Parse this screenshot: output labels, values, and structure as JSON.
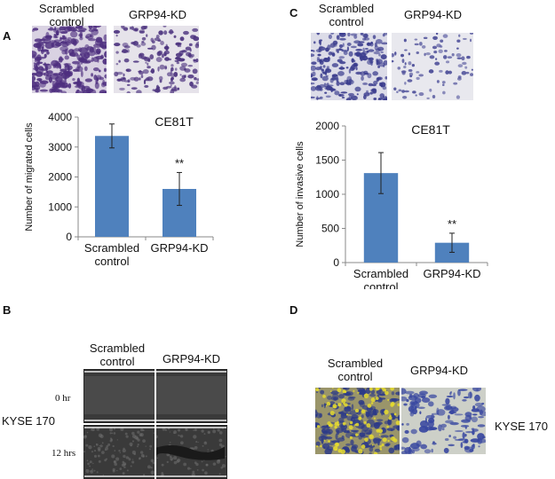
{
  "panels": {
    "A": {
      "letter": "A",
      "image_labels": [
        "Scrambled\ncontrol",
        "GRP94-KD"
      ],
      "chart_data": {
        "type": "bar",
        "title": "CE81T",
        "categories": [
          "Scrambled\ncontrol",
          "GRP94-KD"
        ],
        "values": [
          3370,
          1600
        ],
        "errors": [
          400,
          550
        ],
        "ylabel": "Number of migrated cells",
        "xlabel": "",
        "ylim": [
          0,
          4000
        ],
        "yticks": [
          0,
          1000,
          2000,
          3000,
          4000
        ],
        "significance": [
          "",
          "**"
        ],
        "color": "#4f81bd"
      }
    },
    "B": {
      "letter": "B",
      "column_labels": [
        "Scrambled\ncontrol",
        "GRP94-KD"
      ],
      "row_labels": [
        "0 hr",
        "12 hrs"
      ],
      "cell_line": "KYSE 170"
    },
    "C": {
      "letter": "C",
      "image_labels": [
        "Scrambled\ncontrol",
        "GRP94-KD"
      ],
      "chart_data": {
        "type": "bar",
        "title": "CE81T",
        "categories": [
          "Scrambled\ncontrol",
          "GRP94-KD"
        ],
        "values": [
          1310,
          290
        ],
        "errors": [
          300,
          140
        ],
        "ylabel": "Number of invasive cells",
        "xlabel": "",
        "ylim": [
          0,
          2000
        ],
        "yticks": [
          0,
          500,
          1000,
          1500,
          2000
        ],
        "significance": [
          "",
          "**"
        ],
        "color": "#4f81bd"
      }
    },
    "D": {
      "letter": "D",
      "image_labels": [
        "Scrambled\ncontrol",
        "GRP94-KD"
      ],
      "cell_line": "KYSE 170"
    }
  },
  "colors": {
    "bar": "#4f81bd",
    "stain_purple": "#5b3f8c",
    "stain_blue": "#3a4aa0",
    "yellow": "#d8d23a"
  }
}
